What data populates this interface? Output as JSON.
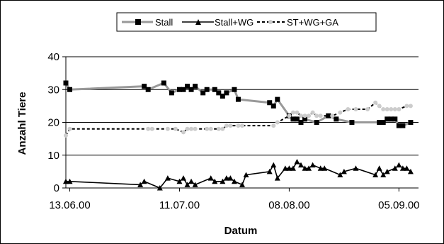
{
  "chart_data": {
    "type": "line",
    "title": "",
    "xlabel": "Datum",
    "ylabel": "Anzahl Tiere",
    "ylim": [
      0,
      40
    ],
    "yticks": [
      0,
      10,
      20,
      30,
      40
    ],
    "xlim": [
      "2000-06-12",
      "2000-09-10"
    ],
    "xticks": [
      {
        "date": "2000-06-13",
        "label": "13.06.00"
      },
      {
        "date": "2000-07-11",
        "label": "11.07.00"
      },
      {
        "date": "2000-08-08",
        "label": "08.08.00"
      },
      {
        "date": "2000-09-05",
        "label": "05.09.00"
      }
    ],
    "grid": {
      "y": true,
      "x": false
    },
    "legend_position": "top",
    "series": [
      {
        "name": "Stall",
        "color": "#999999",
        "marker": "square",
        "line": "solid",
        "points": [
          [
            "2000-06-12",
            32
          ],
          [
            "2000-06-13",
            30
          ],
          [
            "2000-07-02",
            31
          ],
          [
            "2000-07-03",
            30
          ],
          [
            "2000-07-07",
            32
          ],
          [
            "2000-07-09",
            29
          ],
          [
            "2000-07-11",
            30
          ],
          [
            "2000-07-12",
            30
          ],
          [
            "2000-07-13",
            31
          ],
          [
            "2000-07-14",
            30
          ],
          [
            "2000-07-15",
            31
          ],
          [
            "2000-07-17",
            29
          ],
          [
            "2000-07-18",
            30
          ],
          [
            "2000-07-20",
            30
          ],
          [
            "2000-07-21",
            29
          ],
          [
            "2000-07-22",
            28
          ],
          [
            "2000-07-23",
            29
          ],
          [
            "2000-07-25",
            30
          ],
          [
            "2000-07-26",
            27
          ],
          [
            "2000-08-03",
            26
          ],
          [
            "2000-08-04",
            25
          ],
          [
            "2000-08-05",
            27
          ],
          [
            "2000-08-08",
            22
          ],
          [
            "2000-08-09",
            21
          ],
          [
            "2000-08-10",
            21
          ],
          [
            "2000-08-11",
            20
          ],
          [
            "2000-08-12",
            21
          ],
          [
            "2000-08-15",
            20
          ],
          [
            "2000-08-18",
            22
          ],
          [
            "2000-08-20",
            21
          ],
          [
            "2000-08-24",
            20
          ],
          [
            "2000-08-31",
            20
          ],
          [
            "2000-09-01",
            20
          ],
          [
            "2000-09-02",
            21
          ],
          [
            "2000-09-03",
            21
          ],
          [
            "2000-09-04",
            21
          ],
          [
            "2000-09-05",
            19
          ],
          [
            "2000-09-06",
            19
          ],
          [
            "2000-09-08",
            20
          ]
        ]
      },
      {
        "name": "Stall+WG",
        "color": "#000000",
        "marker": "triangle",
        "line": "solid",
        "points": [
          [
            "2000-06-12",
            2
          ],
          [
            "2000-06-13",
            2
          ],
          [
            "2000-07-01",
            1
          ],
          [
            "2000-07-02",
            2
          ],
          [
            "2000-07-06",
            0
          ],
          [
            "2000-07-08",
            3
          ],
          [
            "2000-07-11",
            2
          ],
          [
            "2000-07-12",
            3
          ],
          [
            "2000-07-13",
            1
          ],
          [
            "2000-07-14",
            2
          ],
          [
            "2000-07-15",
            1
          ],
          [
            "2000-07-19",
            3
          ],
          [
            "2000-07-20",
            2
          ],
          [
            "2000-07-22",
            2
          ],
          [
            "2000-07-23",
            3
          ],
          [
            "2000-07-24",
            3
          ],
          [
            "2000-07-25",
            2
          ],
          [
            "2000-07-27",
            1
          ],
          [
            "2000-07-28",
            4
          ],
          [
            "2000-08-03",
            5
          ],
          [
            "2000-08-04",
            7
          ],
          [
            "2000-08-05",
            3
          ],
          [
            "2000-08-07",
            6
          ],
          [
            "2000-08-08",
            6
          ],
          [
            "2000-08-09",
            6
          ],
          [
            "2000-08-10",
            8
          ],
          [
            "2000-08-11",
            7
          ],
          [
            "2000-08-12",
            6
          ],
          [
            "2000-08-13",
            6
          ],
          [
            "2000-08-14",
            7
          ],
          [
            "2000-08-16",
            6
          ],
          [
            "2000-08-17",
            6
          ],
          [
            "2000-08-21",
            4
          ],
          [
            "2000-08-22",
            5
          ],
          [
            "2000-08-25",
            6
          ],
          [
            "2000-08-30",
            4
          ],
          [
            "2000-08-31",
            6
          ],
          [
            "2000-09-01",
            4
          ],
          [
            "2000-09-02",
            5
          ],
          [
            "2000-09-04",
            6
          ],
          [
            "2000-09-05",
            7
          ],
          [
            "2000-09-06",
            6
          ],
          [
            "2000-09-07",
            6
          ],
          [
            "2000-09-08",
            5
          ]
        ]
      },
      {
        "name": "ST+WG+GA",
        "color": "#000000",
        "marker_color": "#cccccc",
        "marker": "circle",
        "line": "dashed",
        "points": [
          [
            "2000-06-12",
            16
          ],
          [
            "2000-06-13",
            18
          ],
          [
            "2000-07-03",
            18
          ],
          [
            "2000-07-04",
            18
          ],
          [
            "2000-07-08",
            18
          ],
          [
            "2000-07-10",
            18
          ],
          [
            "2000-07-12",
            17
          ],
          [
            "2000-07-13",
            18
          ],
          [
            "2000-07-14",
            18
          ],
          [
            "2000-07-15",
            18
          ],
          [
            "2000-07-18",
            18
          ],
          [
            "2000-07-19",
            18
          ],
          [
            "2000-07-21",
            18
          ],
          [
            "2000-07-22",
            18
          ],
          [
            "2000-07-23",
            19
          ],
          [
            "2000-07-24",
            19
          ],
          [
            "2000-07-26",
            19
          ],
          [
            "2000-07-27",
            19
          ],
          [
            "2000-08-04",
            19
          ],
          [
            "2000-08-05",
            20
          ],
          [
            "2000-08-08",
            22
          ],
          [
            "2000-08-09",
            23
          ],
          [
            "2000-08-10",
            23
          ],
          [
            "2000-08-11",
            22
          ],
          [
            "2000-08-12",
            22
          ],
          [
            "2000-08-13",
            22
          ],
          [
            "2000-08-14",
            23
          ],
          [
            "2000-08-15",
            22
          ],
          [
            "2000-08-16",
            22
          ],
          [
            "2000-08-19",
            22
          ],
          [
            "2000-08-21",
            23
          ],
          [
            "2000-08-23",
            24
          ],
          [
            "2000-08-25",
            24
          ],
          [
            "2000-08-28",
            24
          ],
          [
            "2000-08-30",
            26
          ],
          [
            "2000-08-31",
            25
          ],
          [
            "2000-09-01",
            24
          ],
          [
            "2000-09-02",
            24
          ],
          [
            "2000-09-03",
            24
          ],
          [
            "2000-09-04",
            24
          ],
          [
            "2000-09-05",
            24
          ],
          [
            "2000-09-07",
            25
          ],
          [
            "2000-09-08",
            25
          ]
        ]
      }
    ]
  }
}
